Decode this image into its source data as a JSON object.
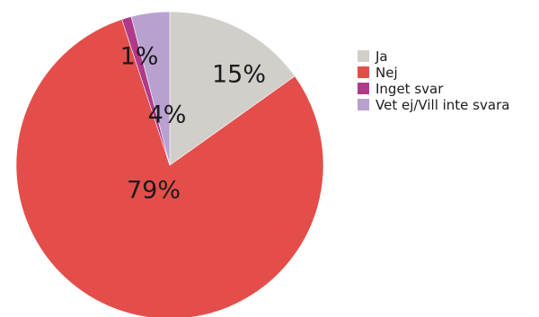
{
  "chart_data": {
    "type": "pie",
    "start_angle": "12 o'clock",
    "direction": "clockwise",
    "legend_position": "right",
    "slices": [
      {
        "label": "Ja",
        "value": 15,
        "value_label": "15%",
        "color": "#d1cfca"
      },
      {
        "label": "Nej",
        "value": 79,
        "value_label": "79%",
        "color": "#e44e4a"
      },
      {
        "label": "Inget svar",
        "value": 1,
        "value_label": "1%",
        "color": "#b03a8a"
      },
      {
        "label": "Vet ej/Vill inte svara",
        "value": 4,
        "value_label": "4%",
        "color": "#b8a1cf"
      }
    ]
  }
}
